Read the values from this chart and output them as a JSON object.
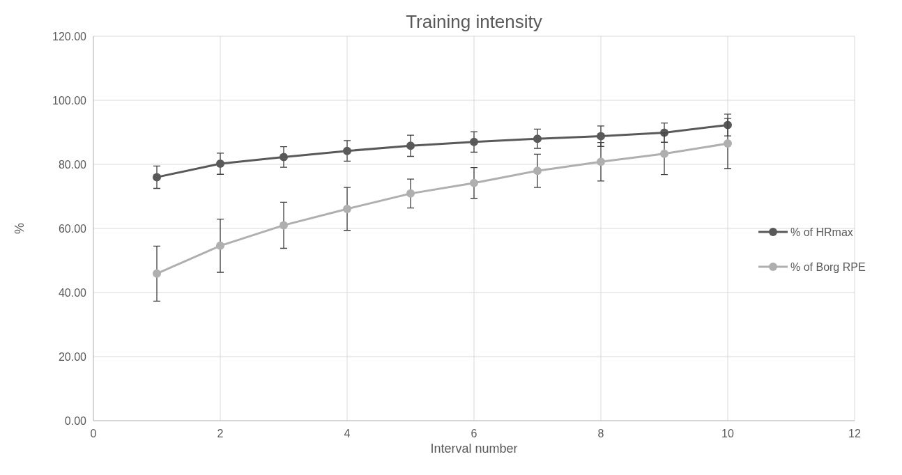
{
  "chart_data": {
    "type": "line",
    "title": "Training intensity",
    "xlabel": "Interval number",
    "ylabel": "%",
    "x": [
      1,
      2,
      3,
      4,
      5,
      6,
      7,
      8,
      9,
      10
    ],
    "xlim": [
      0,
      12
    ],
    "xticks": [
      0,
      2,
      4,
      6,
      8,
      10,
      12
    ],
    "ylim": [
      0,
      120
    ],
    "yticks": [
      {
        "value": 0,
        "label": "0.00"
      },
      {
        "value": 20,
        "label": "20.00"
      },
      {
        "value": 40,
        "label": "40.00"
      },
      {
        "value": 60,
        "label": "60.00"
      },
      {
        "value": 80,
        "label": "80.00"
      },
      {
        "value": 100,
        "label": "100.00"
      },
      {
        "value": 120,
        "label": "120.00"
      }
    ],
    "grid": true,
    "legend": "right",
    "marker": "circle",
    "line_style": "solid",
    "series": [
      {
        "name": "% of HRmax",
        "color": "#595959",
        "values": [
          76.0,
          80.2,
          82.3,
          84.2,
          85.8,
          87.0,
          88.0,
          88.8,
          89.9,
          92.3
        ],
        "errors": [
          3.5,
          3.3,
          3.2,
          3.2,
          3.3,
          3.2,
          3.0,
          3.2,
          3.0,
          3.4
        ]
      },
      {
        "name": "% of Borg RPE",
        "color": "#afafaf",
        "values": [
          45.9,
          54.6,
          61.0,
          66.1,
          70.9,
          74.2,
          78.0,
          80.8,
          83.3,
          86.5
        ],
        "errors": [
          8.6,
          8.3,
          7.2,
          6.7,
          4.5,
          4.8,
          5.2,
          6.0,
          6.5,
          7.8
        ]
      }
    ]
  }
}
